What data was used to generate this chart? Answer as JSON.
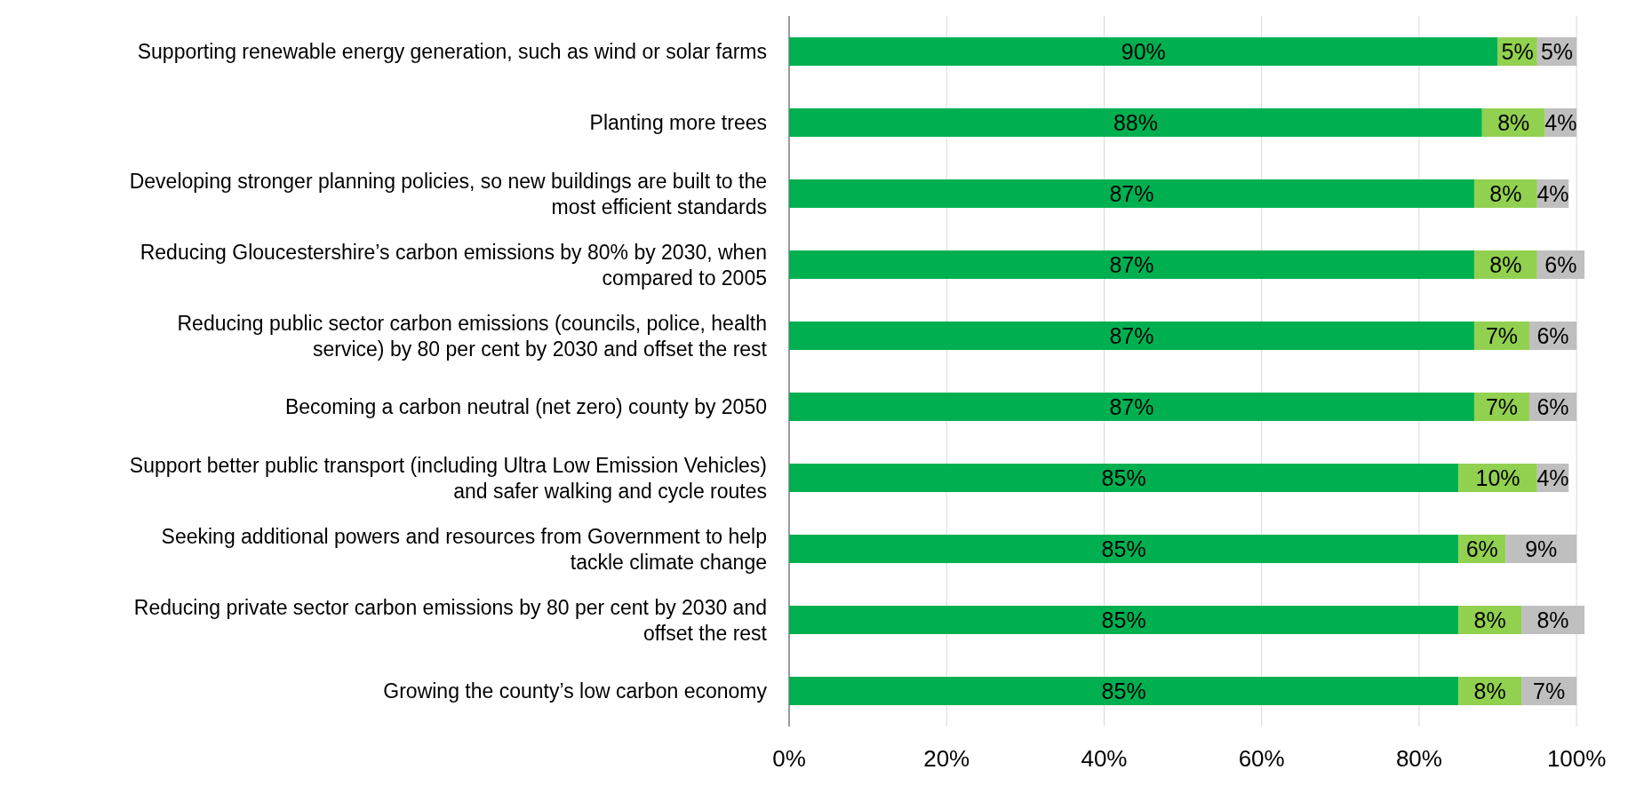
{
  "chart_data": {
    "type": "bar",
    "orientation": "horizontal",
    "stacked": true,
    "categories": [
      "Supporting renewable energy generation, such as wind or solar farms",
      "Planting more trees",
      "Developing stronger planning policies, so new buildings are built to the most efficient standards",
      "Reducing Gloucestershire’s carbon emissions by 80% by 2030, when compared to 2005",
      "Reducing public sector carbon emissions (councils, police, health service) by 80 per cent by 2030 and offset the rest",
      "Becoming a carbon neutral (net zero) county by 2050",
      "Support better public transport (including Ultra Low Emission Vehicles) and safer walking and cycle routes",
      "Seeking additional powers and resources from Government to help tackle climate change",
      "Reducing private sector carbon emissions by 80 per cent by 2030 and offset the rest",
      "Growing the county’s low carbon economy"
    ],
    "series": [
      {
        "color": "#00b050",
        "values": [
          90,
          88,
          87,
          87,
          87,
          87,
          85,
          85,
          85,
          85
        ],
        "value_labels": [
          "90%",
          "88%",
          "87%",
          "87%",
          "87%",
          "87%",
          "85%",
          "85%",
          "85%",
          "85%"
        ]
      },
      {
        "color": "#92d050",
        "values": [
          5,
          8,
          8,
          8,
          7,
          7,
          10,
          6,
          8,
          8
        ],
        "value_labels": [
          "5%",
          "8%",
          "8%",
          "8%",
          "7%",
          "7%",
          "10%",
          "6%",
          "8%",
          "8%"
        ]
      },
      {
        "color": "#bfbfbf",
        "values": [
          5,
          4,
          4,
          6,
          6,
          6,
          4,
          9,
          8,
          7
        ],
        "value_labels": [
          "5%",
          "4%",
          "4%",
          "6%",
          "6%",
          "6%",
          "4%",
          "9%",
          "8%",
          "7%"
        ]
      }
    ],
    "xlim": [
      0,
      101
    ],
    "xticks": [
      {
        "value": 0,
        "label": "0%"
      },
      {
        "value": 20,
        "label": "20%"
      },
      {
        "value": 40,
        "label": "40%"
      },
      {
        "value": 60,
        "label": "60%"
      },
      {
        "value": 80,
        "label": "80%"
      },
      {
        "value": 100,
        "label": "100%"
      }
    ],
    "grid": "x"
  }
}
